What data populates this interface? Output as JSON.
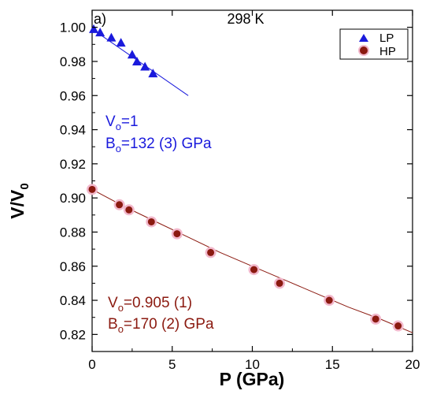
{
  "chart_data": {
    "type": "scatter",
    "panel_label": "a)",
    "title": "298 K",
    "xlabel": "P (GPa)",
    "ylabel_main": "V/V",
    "ylabel_sub": "0",
    "xlim": [
      0,
      20
    ],
    "ylim": [
      0.81,
      1.01
    ],
    "xticks": [
      0,
      5,
      10,
      15,
      20
    ],
    "yticks": [
      0.82,
      0.84,
      0.86,
      0.88,
      0.9,
      0.92,
      0.94,
      0.96,
      0.98,
      1.0
    ],
    "legend_position": "top-right",
    "series": [
      {
        "name": "LP",
        "marker": "triangle",
        "color": "#1a1adc",
        "x": [
          0.1,
          0.5,
          1.2,
          1.8,
          2.5,
          2.8,
          3.3,
          3.8
        ],
        "y": [
          0.999,
          0.997,
          0.994,
          0.991,
          0.984,
          0.98,
          0.977,
          0.973
        ],
        "fit": {
          "x": [
            0,
            6
          ],
          "y": [
            0.999,
            0.96
          ]
        }
      },
      {
        "name": "HP",
        "marker": "circle",
        "color": "#8b1a10",
        "halo": "#f2b8cc",
        "x": [
          0,
          1.7,
          2.3,
          3.7,
          5.3,
          7.4,
          10.1,
          11.7,
          14.8,
          17.7,
          19.1
        ],
        "y": [
          0.905,
          0.896,
          0.893,
          0.886,
          0.879,
          0.868,
          0.858,
          0.85,
          0.84,
          0.829,
          0.825
        ],
        "fit": {
          "x": [
            0,
            2,
            4,
            6,
            8,
            10,
            12,
            14,
            16,
            18,
            20
          ],
          "y": [
            0.905,
            0.895,
            0.886,
            0.877,
            0.868,
            0.86,
            0.852,
            0.844,
            0.836,
            0.829,
            0.821
          ]
        }
      }
    ],
    "annotations": [
      {
        "main": "V",
        "sub": "o",
        "rest": "=1",
        "color": "#1a1adc",
        "at": "lp-v"
      },
      {
        "main": "B",
        "sub": "o",
        "rest": "=132 (3) GPa",
        "color": "#1a1adc",
        "at": "lp-b"
      },
      {
        "main": "V",
        "sub": "o",
        "rest": "=0.905 (1)",
        "color": "#8b1a10",
        "at": "hp-v"
      },
      {
        "main": "B",
        "sub": "o",
        "rest": "=170 (2) GPa",
        "color": "#8b1a10",
        "at": "hp-b"
      }
    ]
  }
}
